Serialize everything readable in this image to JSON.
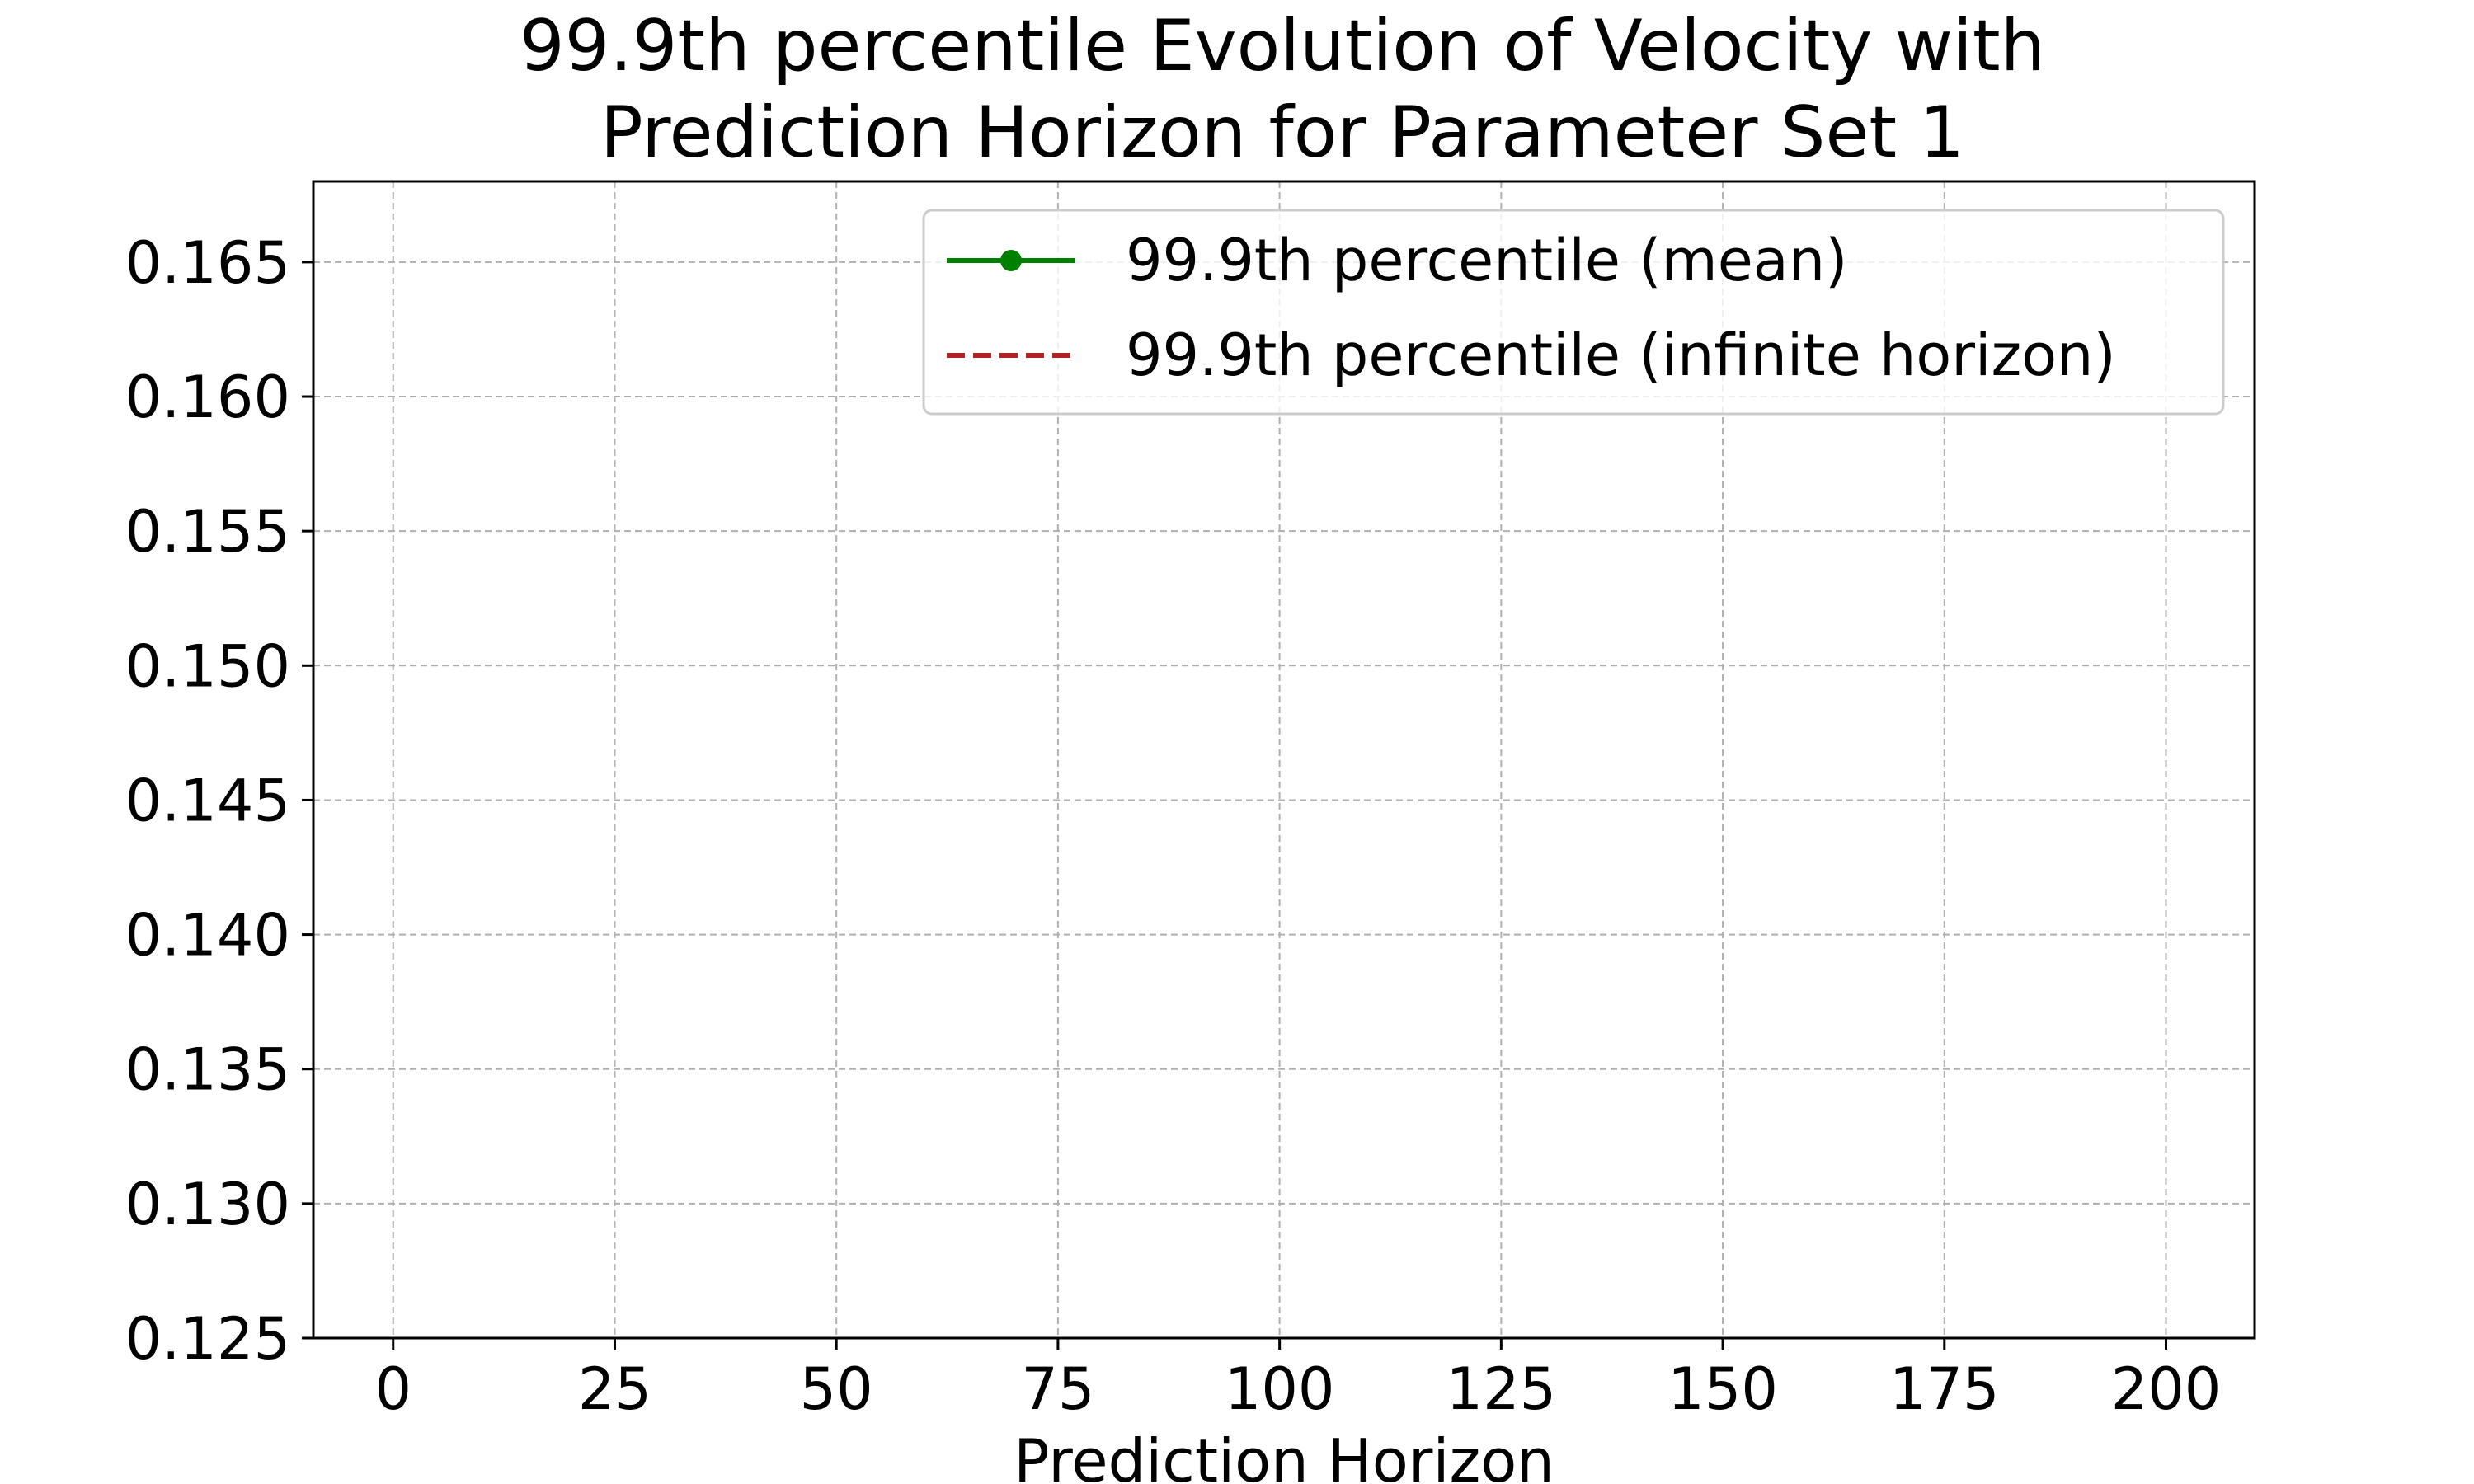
{
  "chart_data": {
    "type": "line",
    "title_lines": [
      "99.9th percentile Evolution of Velocity with",
      "Prediction Horizon for Parameter Set 1"
    ],
    "xlabel": "Prediction Horizon",
    "ylabel": "",
    "xlim": [
      -9,
      210
    ],
    "ylim": [
      0.125,
      0.168
    ],
    "xticks": [
      0,
      25,
      50,
      75,
      100,
      125,
      150,
      175,
      200
    ],
    "xtick_labels": [
      "0",
      "25",
      "50",
      "75",
      "100",
      "125",
      "150",
      "175",
      "200"
    ],
    "yticks": [
      0.125,
      0.13,
      0.135,
      0.14,
      0.145,
      0.15,
      0.155,
      0.16,
      0.165
    ],
    "ytick_labels": [
      "0.125",
      "0.130",
      "0.135",
      "0.140",
      "0.145",
      "0.150",
      "0.155",
      "0.160",
      "0.165"
    ],
    "grid": true,
    "legend_position": "top-right",
    "series": [
      {
        "name": "99.9th percentile (mean)",
        "color": "#008000",
        "line_style": "solid",
        "marker": "circle",
        "x": [],
        "y": []
      },
      {
        "name": "99.9th percentile (infinite horizon)",
        "color": "#b22222",
        "line_style": "dashed",
        "marker": "none",
        "x": [],
        "y": []
      }
    ]
  }
}
